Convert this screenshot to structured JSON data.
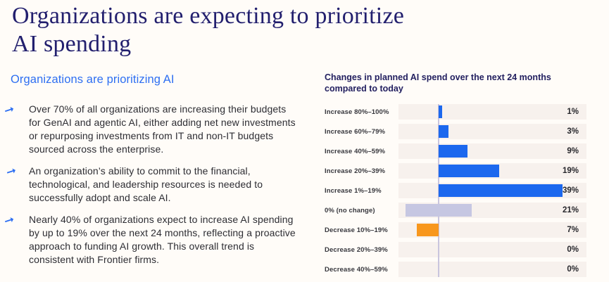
{
  "slide": {
    "title_lines": [
      "Organizations are expecting to prioritize",
      "AI spending"
    ]
  },
  "left_panel": {
    "heading": "Organizations are prioritizing AI",
    "bullets": [
      {
        "icon": "arrow-right-icon",
        "text": "Over 70% of all organizations are increasing their budgets for GenAI and agentic AI, either adding net new investments or repurposing investments from IT and non-IT budgets sourced across the enterprise."
      },
      {
        "icon": "arrow-right-icon",
        "text": "An organization’s ability to commit to the financial, technological, and leadership resources is needed to successfully adopt and scale AI."
      },
      {
        "icon": "arrow-right-icon",
        "text": "Nearly 40% of organizations expect to increase AI spending by up to 19% over the next 24 months, reflecting a proactive approach to funding AI growth. This overall trend is consistent with Frontier firms."
      }
    ]
  },
  "chart": {
    "title_lines": [
      "Changes in planned AI spend over the next 24 months",
      "compared to today"
    ]
  },
  "chart_data": {
    "type": "bar",
    "orientation": "horizontal_diverging",
    "title": "Changes in planned AI spend over the next 24 months compared to today",
    "unit": "%",
    "categories": [
      "Increase 80%–100%",
      "Increase 60%–79%",
      "Increase 40%–59%",
      "Increase 20%–39%",
      "Increase 1%–19%",
      "0% (no change)",
      "Decrease 10%–19%",
      "Decrease 20%–39%",
      "Decrease 40%–59%"
    ],
    "values": [
      1,
      3,
      9,
      19,
      39,
      21,
      7,
      0,
      0
    ],
    "value_labels": [
      "1%",
      "3%",
      "9%",
      "19%",
      "39%",
      "21%",
      "7%",
      "0%",
      "0%"
    ],
    "bar_directions": [
      "right",
      "right",
      "right",
      "right",
      "right",
      "center",
      "left",
      "left",
      "left"
    ],
    "bar_color_keys": [
      "blue",
      "blue",
      "blue",
      "blue",
      "blue",
      "neutral",
      "orange",
      "orange",
      "orange"
    ],
    "axis": {
      "baseline_value": 0,
      "grid": false,
      "value_label_position": "right_aligned_in_row"
    }
  },
  "colors": {
    "background": "#fffcf8",
    "title_navy": "#221f6e",
    "accent_blue": "#2e6ff2",
    "body_text": "#2d2d33",
    "bar_blue": "#1c68ee",
    "bar_orange": "#f8971d",
    "bar_neutral": "#c6c7e2",
    "row_background": "#f7f1ed",
    "axis_line": "#c9c5de"
  }
}
